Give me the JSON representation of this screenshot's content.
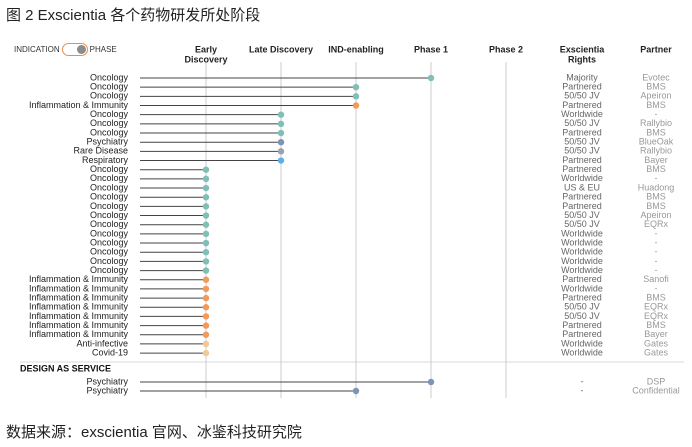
{
  "title": "图 2 Exscientia  各个药物研发所处阶段",
  "footer": "数据来源：exscientia 官网、冰鉴科技研究院",
  "toggle": {
    "left_label": "INDICATION",
    "right_label": "PHASE"
  },
  "section_label": "DESIGN AS SERVICE",
  "colors": {
    "oncology": "#7fbfb8",
    "inflammation": "#f29a5a",
    "psychiatry": "#7b95b8",
    "rare": "#9aa3ad",
    "respiratory": "#5cb0e8",
    "anti_infective": "#f2c79a",
    "grid": "#cccccc",
    "stem": "#444444"
  },
  "chart_data": {
    "type": "lollipop",
    "phases": [
      "Early Discovery",
      "Late Discovery",
      "IND-enabling",
      "Phase 1",
      "Phase 2"
    ],
    "column_headers": {
      "rights": "Exscientia Rights",
      "partner": "Partner"
    },
    "rows": [
      {
        "indication": "Oncology",
        "phase": "Phase 1",
        "color": "oncology",
        "rights": "Majority",
        "partner": "Evotec"
      },
      {
        "indication": "Oncology",
        "phase": "IND-enabling",
        "color": "oncology",
        "rights": "Partnered",
        "partner": "BMS"
      },
      {
        "indication": "Oncology",
        "phase": "IND-enabling",
        "color": "oncology",
        "rights": "50/50 JV",
        "partner": "Apeiron"
      },
      {
        "indication": "Inflammation & Immunity",
        "phase": "IND-enabling",
        "color": "inflammation",
        "rights": "Partnered",
        "partner": "BMS"
      },
      {
        "indication": "Oncology",
        "phase": "Late Discovery",
        "color": "oncology",
        "rights": "Worldwide",
        "partner": "-"
      },
      {
        "indication": "Oncology",
        "phase": "Late Discovery",
        "color": "oncology",
        "rights": "50/50 JV",
        "partner": "Rallybio"
      },
      {
        "indication": "Oncology",
        "phase": "Late Discovery",
        "color": "oncology",
        "rights": "Partnered",
        "partner": "BMS"
      },
      {
        "indication": "Psychiatry",
        "phase": "Late Discovery",
        "color": "psychiatry",
        "rights": "50/50 JV",
        "partner": "BlueOak"
      },
      {
        "indication": "Rare Disease",
        "phase": "Late Discovery",
        "color": "rare",
        "rights": "50/50 JV",
        "partner": "Rallybio"
      },
      {
        "indication": "Respiratory",
        "phase": "Late Discovery",
        "color": "respiratory",
        "rights": "Partnered",
        "partner": "Bayer"
      },
      {
        "indication": "Oncology",
        "phase": "Early Discovery",
        "color": "oncology",
        "rights": "Partnered",
        "partner": "BMS"
      },
      {
        "indication": "Oncology",
        "phase": "Early Discovery",
        "color": "oncology",
        "rights": "Worldwide",
        "partner": "-"
      },
      {
        "indication": "Oncology",
        "phase": "Early Discovery",
        "color": "oncology",
        "rights": "US & EU",
        "partner": "Huadong"
      },
      {
        "indication": "Oncology",
        "phase": "Early Discovery",
        "color": "oncology",
        "rights": "Partnered",
        "partner": "BMS"
      },
      {
        "indication": "Oncology",
        "phase": "Early Discovery",
        "color": "oncology",
        "rights": "Partnered",
        "partner": "BMS"
      },
      {
        "indication": "Oncology",
        "phase": "Early Discovery",
        "color": "oncology",
        "rights": "50/50 JV",
        "partner": "Apeiron"
      },
      {
        "indication": "Oncology",
        "phase": "Early Discovery",
        "color": "oncology",
        "rights": "50/50 JV",
        "partner": "EQRx"
      },
      {
        "indication": "Oncology",
        "phase": "Early Discovery",
        "color": "oncology",
        "rights": "Worldwide",
        "partner": "-"
      },
      {
        "indication": "Oncology",
        "phase": "Early Discovery",
        "color": "oncology",
        "rights": "Worldwide",
        "partner": "-"
      },
      {
        "indication": "Oncology",
        "phase": "Early Discovery",
        "color": "oncology",
        "rights": "Worldwide",
        "partner": "-"
      },
      {
        "indication": "Oncology",
        "phase": "Early Discovery",
        "color": "oncology",
        "rights": "Worldwide",
        "partner": "-"
      },
      {
        "indication": "Oncology",
        "phase": "Early Discovery",
        "color": "oncology",
        "rights": "Worldwide",
        "partner": "-"
      },
      {
        "indication": "Inflammation & Immunity",
        "phase": "Early Discovery",
        "color": "inflammation",
        "rights": "Partnered",
        "partner": "Sanofi"
      },
      {
        "indication": "Inflammation & Immunity",
        "phase": "Early Discovery",
        "color": "inflammation",
        "rights": "Worldwide",
        "partner": "-"
      },
      {
        "indication": "Inflammation & Immunity",
        "phase": "Early Discovery",
        "color": "inflammation",
        "rights": "Partnered",
        "partner": "BMS"
      },
      {
        "indication": "Inflammation & Immunity",
        "phase": "Early Discovery",
        "color": "inflammation",
        "rights": "50/50 JV",
        "partner": "EQRx"
      },
      {
        "indication": "Inflammation & Immunity",
        "phase": "Early Discovery",
        "color": "inflammation",
        "rights": "50/50 JV",
        "partner": "EQRx"
      },
      {
        "indication": "Inflammation & Immunity",
        "phase": "Early Discovery",
        "color": "inflammation",
        "rights": "Partnered",
        "partner": "BMS"
      },
      {
        "indication": "Inflammation & Immunity",
        "phase": "Early Discovery",
        "color": "inflammation",
        "rights": "Partnered",
        "partner": "Bayer"
      },
      {
        "indication": "Anti-infective",
        "phase": "Early Discovery",
        "color": "anti_infective",
        "rights": "Worldwide",
        "partner": "Gates"
      },
      {
        "indication": "Covid-19",
        "phase": "Early Discovery",
        "color": "anti_infective",
        "rights": "Worldwide",
        "partner": "Gates"
      }
    ],
    "service_rows": [
      {
        "indication": "Psychiatry",
        "phase": "Phase 1",
        "color": "psychiatry",
        "rights": "-",
        "partner": "DSP"
      },
      {
        "indication": "Psychiatry",
        "phase": "IND-enabling",
        "color": "psychiatry",
        "rights": "-",
        "partner": "Confidential"
      }
    ]
  }
}
